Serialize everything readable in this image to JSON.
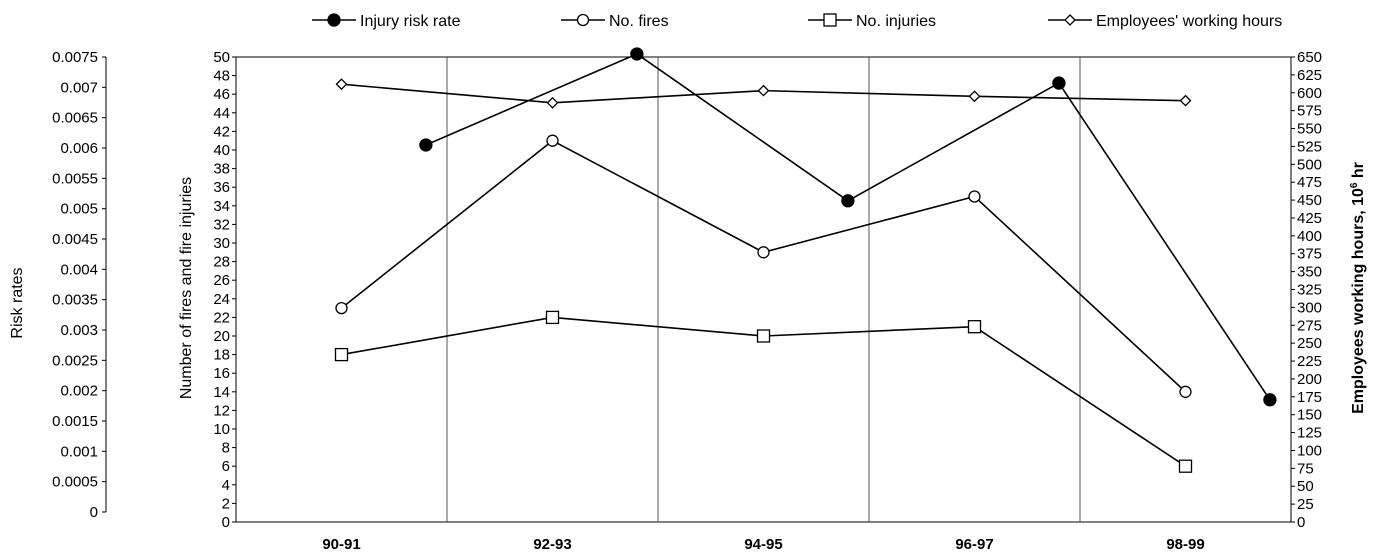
{
  "chart_data": {
    "type": "line",
    "categories": [
      "90-91",
      "92-93",
      "94-95",
      "96-97",
      "98-99"
    ],
    "axes": {
      "risk": {
        "label": "Risk rates",
        "range": [
          0,
          0.0075
        ],
        "ticks": [
          "0.0075",
          "0.007",
          "0.0065",
          "0.006",
          "0.0055",
          "0.005",
          "0.0045",
          "0.004",
          "0.0035",
          "0.003",
          "0.0025",
          "0.002",
          "0.0015",
          "0.001",
          "0.0005",
          "0"
        ]
      },
      "count": {
        "label": "Number of fires and fire injuries",
        "range": [
          0,
          50
        ]
      },
      "hours": {
        "label_main": "Employees working hours, 10",
        "label_exp": "6",
        "label_unit": " hr",
        "range": [
          0,
          650
        ]
      }
    },
    "series": [
      {
        "name": "Injury risk rate",
        "marker": "filled-circle",
        "axis": "risk",
        "x": [
          0.4,
          1.4,
          2.4,
          3.4,
          4.4
        ],
        "values": [
          0.00605,
          0.00755,
          0.00513,
          0.00707,
          0.00185
        ]
      },
      {
        "name": "No. fires",
        "marker": "open-circle",
        "axis": "count",
        "x": [
          0,
          1,
          2,
          3,
          4
        ],
        "values": [
          23,
          41,
          29,
          35,
          14
        ]
      },
      {
        "name": "No. injuries",
        "marker": "open-square",
        "axis": "count",
        "x": [
          0,
          1,
          2,
          3,
          4
        ],
        "values": [
          18,
          22,
          20,
          21,
          6
        ]
      },
      {
        "name": "Employees' working hours",
        "marker": "open-diamond",
        "axis": "hours",
        "x": [
          0,
          1,
          2,
          3,
          4
        ],
        "values": [
          612,
          586,
          603,
          595,
          589
        ]
      }
    ],
    "grid": "vertical-only",
    "legend": "top"
  }
}
